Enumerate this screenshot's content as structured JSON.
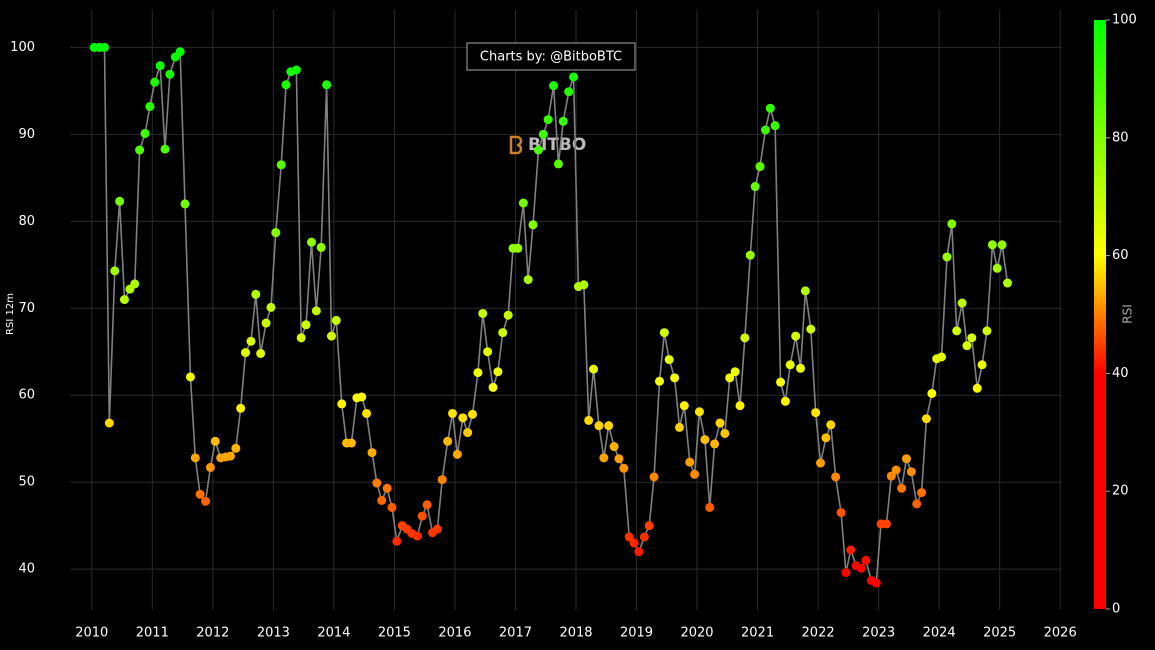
{
  "chart_data": {
    "type": "scatter",
    "ylabel": "RSI 12m",
    "annotation": "Charts by: @BitboBTC",
    "watermark": "BITBO",
    "x": [
      2010.04,
      2010.13,
      2010.21,
      2010.29,
      2010.38,
      2010.46,
      2010.54,
      2010.63,
      2010.71,
      2010.79,
      2010.88,
      2010.96,
      2011.04,
      2011.13,
      2011.21,
      2011.29,
      2011.38,
      2011.46,
      2011.54,
      2011.63,
      2011.71,
      2011.79,
      2011.88,
      2011.96,
      2012.04,
      2012.13,
      2012.21,
      2012.29,
      2012.38,
      2012.46,
      2012.54,
      2012.63,
      2012.71,
      2012.79,
      2012.88,
      2012.96,
      2013.04,
      2013.13,
      2013.21,
      2013.29,
      2013.38,
      2013.46,
      2013.54,
      2013.63,
      2013.71,
      2013.79,
      2013.88,
      2013.96,
      2014.04,
      2014.13,
      2014.21,
      2014.29,
      2014.38,
      2014.46,
      2014.54,
      2014.63,
      2014.71,
      2014.79,
      2014.88,
      2014.96,
      2015.04,
      2015.13,
      2015.21,
      2015.29,
      2015.38,
      2015.46,
      2015.54,
      2015.63,
      2015.71,
      2015.79,
      2015.88,
      2015.96,
      2016.04,
      2016.13,
      2016.21,
      2016.29,
      2016.38,
      2016.46,
      2016.54,
      2016.63,
      2016.71,
      2016.79,
      2016.88,
      2016.96,
      2017.04,
      2017.13,
      2017.21,
      2017.29,
      2017.38,
      2017.46,
      2017.54,
      2017.63,
      2017.71,
      2017.79,
      2017.88,
      2017.96,
      2018.04,
      2018.13,
      2018.21,
      2018.29,
      2018.38,
      2018.46,
      2018.54,
      2018.63,
      2018.71,
      2018.79,
      2018.88,
      2018.96,
      2019.04,
      2019.13,
      2019.21,
      2019.29,
      2019.38,
      2019.46,
      2019.54,
      2019.63,
      2019.71,
      2019.79,
      2019.88,
      2019.96,
      2020.04,
      2020.13,
      2020.21,
      2020.29,
      2020.38,
      2020.46,
      2020.54,
      2020.63,
      2020.71,
      2020.79,
      2020.88,
      2020.96,
      2021.04,
      2021.13,
      2021.21,
      2021.29,
      2021.38,
      2021.46,
      2021.54,
      2021.63,
      2021.71,
      2021.79,
      2021.88,
      2021.96,
      2022.04,
      2022.13,
      2022.21,
      2022.29,
      2022.38,
      2022.46,
      2022.54,
      2022.63,
      2022.71,
      2022.79,
      2022.88,
      2022.96,
      2023.04,
      2023.13,
      2023.21,
      2023.29,
      2023.38,
      2023.46,
      2023.54,
      2023.63,
      2023.71,
      2023.79,
      2023.88,
      2023.96,
      2024.04,
      2024.13,
      2024.21,
      2024.29,
      2024.38,
      2024.46,
      2024.54,
      2024.63,
      2024.71,
      2024.79,
      2024.88,
      2024.96,
      2025.04,
      2025.13
    ],
    "values": [
      100,
      100,
      100,
      56.8,
      74.3,
      82.3,
      71,
      72.2,
      72.8,
      88.2,
      90.1,
      93.2,
      96,
      97.9,
      88.3,
      96.9,
      98.9,
      99.5,
      82,
      62.1,
      52.8,
      48.6,
      47.8,
      51.7,
      54.7,
      52.8,
      52.9,
      53,
      53.9,
      58.5,
      64.9,
      66.2,
      71.6,
      64.8,
      68.3,
      70.1,
      78.7,
      86.5,
      95.7,
      97.2,
      97.4,
      66.6,
      68.1,
      77.6,
      69.7,
      77,
      95.7,
      66.8,
      68.6,
      59,
      54.5,
      54.5,
      59.7,
      59.8,
      57.9,
      53.4,
      49.9,
      47.9,
      49.3,
      47.1,
      43.2,
      45,
      44.6,
      44.1,
      43.8,
      46.1,
      47.4,
      44.2,
      44.6,
      50.3,
      54.7,
      57.9,
      53.2,
      57.4,
      55.7,
      57.8,
      62.6,
      69.4,
      65,
      60.9,
      62.7,
      67.2,
      69.2,
      76.9,
      76.9,
      82.1,
      73.3,
      79.6,
      88.2,
      90,
      91.7,
      95.6,
      86.6,
      91.5,
      94.9,
      96.6,
      72.5,
      72.7,
      57.1,
      63,
      56.5,
      52.8,
      56.5,
      54.1,
      52.7,
      51.6,
      43.7,
      43,
      42,
      43.7,
      45,
      50.6,
      61.6,
      67.2,
      64.1,
      62,
      56.3,
      58.8,
      52.3,
      50.9,
      58.1,
      54.9,
      47.1,
      54.4,
      56.8,
      55.6,
      62,
      62.7,
      58.8,
      66.6,
      76.1,
      84,
      86.3,
      90.5,
      93,
      91,
      61.5,
      59.3,
      63.5,
      66.8,
      63.1,
      72,
      67.6,
      58,
      52.2,
      55.1,
      56.6,
      50.6,
      46.5,
      39.6,
      42.2,
      40.4,
      40.1,
      41,
      38.7,
      38.4,
      45.2,
      45.2,
      50.7,
      51.4,
      49.3,
      52.7,
      51.2,
      47.5,
      48.8,
      57.3,
      60.2,
      64.2,
      64.4,
      75.9,
      79.7,
      67.4,
      70.6,
      65.7,
      66.6,
      60.8,
      63.5,
      67.4,
      77.3,
      74.6,
      77.3,
      72.9
    ],
    "line_color": "#808080",
    "xlim": [
      2009.64,
      2026.03
    ],
    "xticks": [
      2010,
      2011,
      2012,
      2013,
      2014,
      2015,
      2016,
      2017,
      2018,
      2019,
      2020,
      2021,
      2022,
      2023,
      2024,
      2025,
      2026
    ],
    "ylim": [
      35.3,
      104.3
    ],
    "yticks": [
      40,
      50,
      60,
      70,
      80,
      90,
      100
    ],
    "grid": true,
    "colorbar_title": "RSI",
    "clim": [
      0,
      100
    ],
    "cticks": [
      0,
      20,
      40,
      60,
      80,
      100
    ],
    "colorscale": [
      [
        0,
        "#ff0000"
      ],
      [
        40,
        "#ff0000"
      ],
      [
        60,
        "#ffff00"
      ],
      [
        100,
        "#00ff00"
      ]
    ]
  }
}
